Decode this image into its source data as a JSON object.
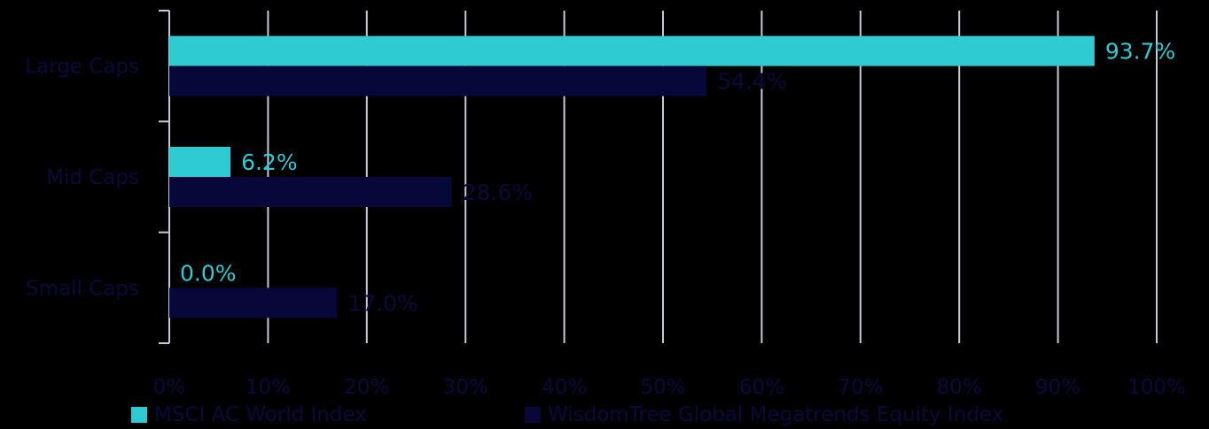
{
  "chart_data": {
    "type": "bar",
    "orientation": "horizontal",
    "categories": [
      "Large Caps",
      "Mid Caps",
      "Small Caps"
    ],
    "series": [
      {
        "name": "MSCI AC World Index",
        "color": "#2ecbd3",
        "values": [
          93.7,
          6.2,
          0.0
        ],
        "labels": [
          "93.7%",
          "6.2%",
          "0.0%"
        ]
      },
      {
        "name": "WisdomTree Global Megatrends Equity Index",
        "color": "#07073a",
        "values": [
          54.4,
          28.6,
          17.0
        ],
        "labels": [
          "54.4%",
          "28.6%",
          "17.0%"
        ]
      }
    ],
    "xlim": [
      0,
      100
    ],
    "xticks": [
      "0%",
      "10%",
      "20%",
      "30%",
      "40%",
      "50%",
      "60%",
      "70%",
      "80%",
      "90%",
      "100%"
    ],
    "grid": true,
    "legend_position": "bottom",
    "background": "#000000",
    "gridline_color": "#c8c8d8",
    "axis_text_color": "#0a0a3a"
  }
}
